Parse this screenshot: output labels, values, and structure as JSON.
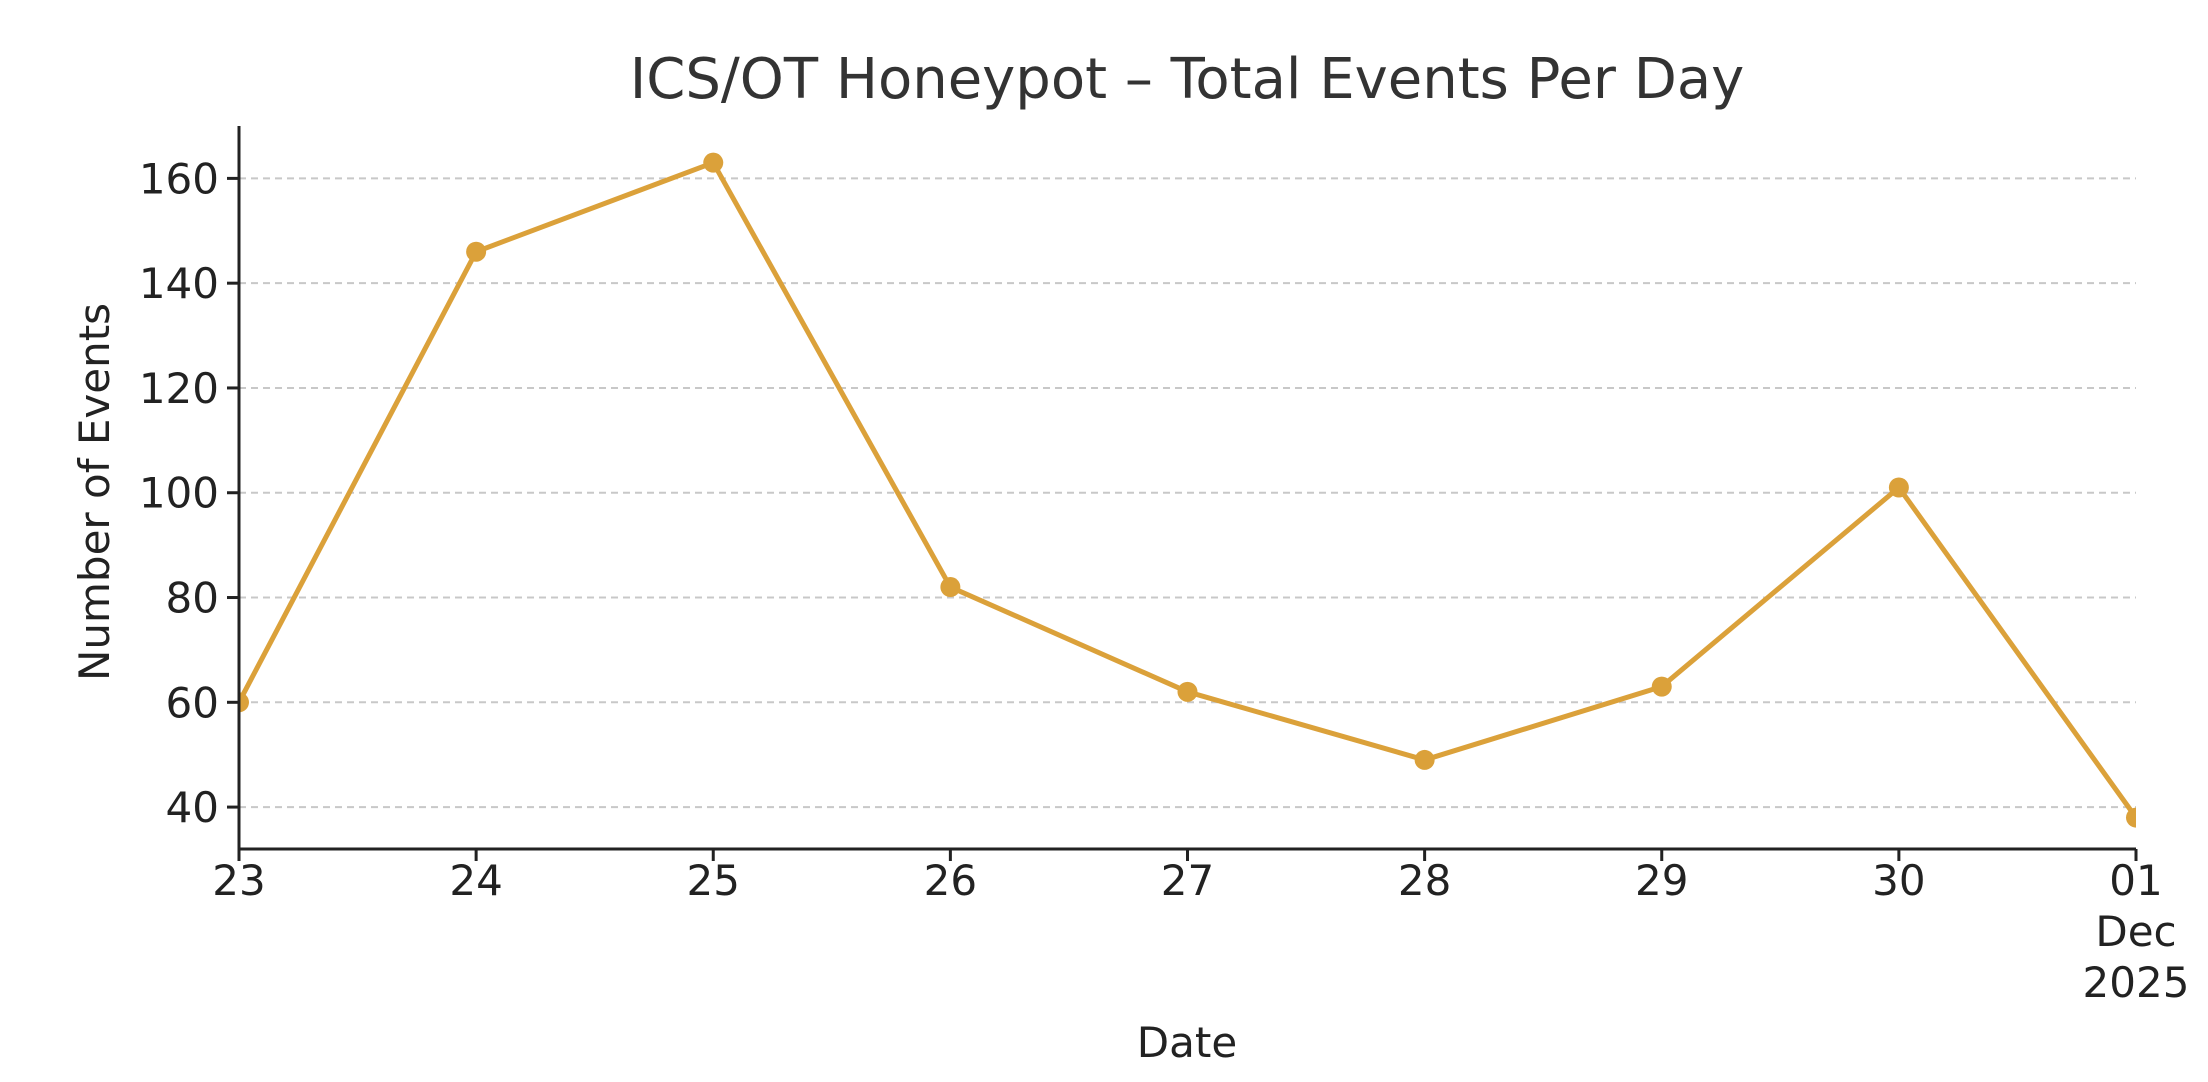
{
  "chart_data": {
    "type": "line",
    "title": "ICS/OT Honeypot – Total Events Per Day",
    "xlabel": "Date",
    "ylabel": "Number of Events",
    "x": [
      "2025-11-23",
      "2025-11-24",
      "2025-11-25",
      "2025-11-26",
      "2025-11-27",
      "2025-11-28",
      "2025-11-29",
      "2025-11-30",
      "2025-12-01"
    ],
    "x_tick_labels": [
      "23",
      "24",
      "25",
      "26",
      "27",
      "28",
      "29",
      "30",
      "01\nDec\n2025"
    ],
    "series": [
      {
        "values": [
          60,
          146,
          163,
          82,
          62,
          49,
          63,
          101,
          38
        ],
        "color": "#DBA13A",
        "marker": "circle"
      }
    ],
    "ylim": [
      32,
      170
    ],
    "yticks": [
      40,
      60,
      80,
      100,
      120,
      140,
      160
    ],
    "grid": "horizontal-dashed",
    "legend": "none"
  }
}
